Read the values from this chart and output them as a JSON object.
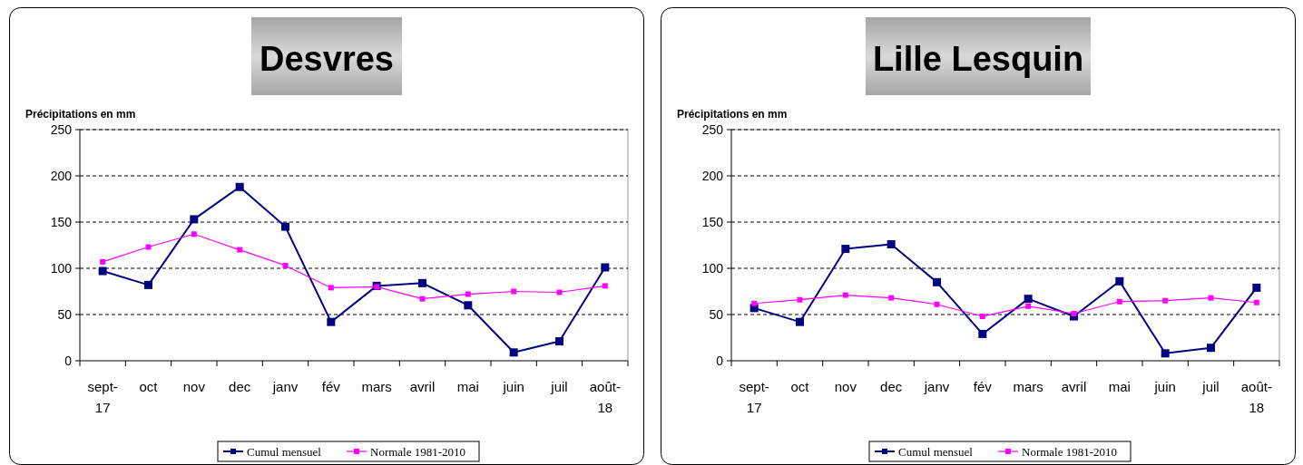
{
  "chart_data": [
    {
      "type": "line",
      "title": "Desvres",
      "ylabel": "Précipitations en mm",
      "categories": [
        "sept-17",
        "oct",
        "nov",
        "dec",
        "janv",
        "fév",
        "mars",
        "avril",
        "mai",
        "juin",
        "juil",
        "août-18"
      ],
      "series": [
        {
          "name": "Cumul mensuel",
          "color": "#000080",
          "values": [
            97,
            82,
            153,
            188,
            145,
            42,
            81,
            84,
            60,
            9,
            21,
            101
          ]
        },
        {
          "name": "Normale 1981-2010",
          "color": "#ff00ff",
          "values": [
            107,
            123,
            137,
            120,
            103,
            79,
            80,
            67,
            72,
            75,
            74,
            81
          ]
        }
      ],
      "ylim": [
        0,
        250
      ],
      "yticks": [
        0,
        50,
        100,
        150,
        200,
        250
      ],
      "grid": "y",
      "legend": "bottom",
      "marker": "square",
      "line_style": "solid"
    },
    {
      "type": "line",
      "title": "Lille Lesquin",
      "ylabel": "Précipitations en mm",
      "categories": [
        "sept-17",
        "oct",
        "nov",
        "dec",
        "janv",
        "fév",
        "mars",
        "avril",
        "mai",
        "juin",
        "juil",
        "août-18"
      ],
      "series": [
        {
          "name": "Cumul mensuel",
          "color": "#000080",
          "values": [
            57,
            42,
            121,
            126,
            85,
            29,
            67,
            48,
            86,
            8,
            14,
            79
          ]
        },
        {
          "name": "Normale 1981-2010",
          "color": "#ff00ff",
          "values": [
            62,
            66,
            71,
            68,
            61,
            48,
            59,
            51,
            64,
            65,
            68,
            63
          ]
        }
      ],
      "ylim": [
        0,
        250
      ],
      "yticks": [
        0,
        50,
        100,
        150,
        200,
        250
      ],
      "grid": "y",
      "legend": "bottom",
      "marker": "square",
      "line_style": "solid"
    }
  ]
}
